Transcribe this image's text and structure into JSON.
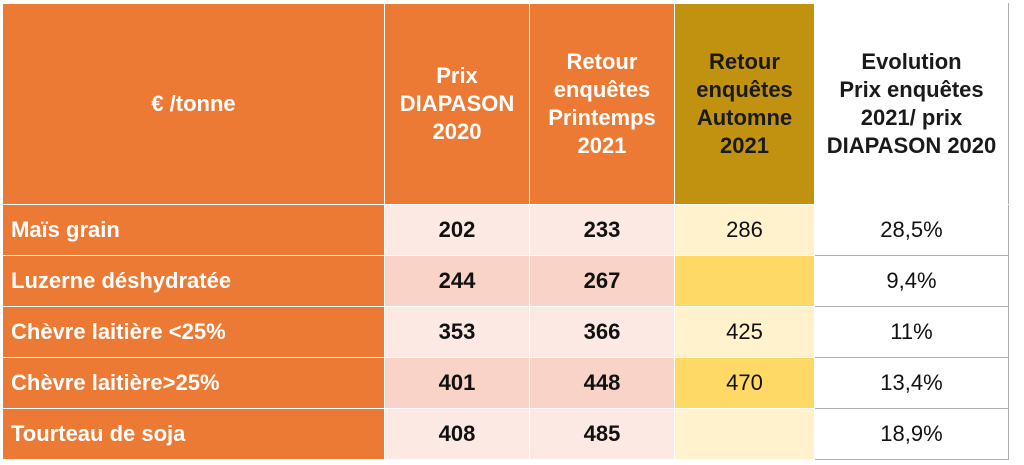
{
  "table": {
    "header": {
      "unit": "€ /tonne",
      "prix_diapason": "Prix\nDIAPASON\n2020",
      "retour_printemps": "Retour\nenquêtes\nPrintemps\n2021",
      "retour_automne": "Retour\nenquêtes\nAutomne\n2021",
      "evolution": "Evolution\nPrix enquêtes\n2021/ prix\nDIAPASON 2020"
    },
    "rows": [
      {
        "label": "Maïs grain",
        "prix_diapason": "202",
        "printemps": "233",
        "automne": "286",
        "evolution": "28,5%"
      },
      {
        "label": "Luzerne déshydratée",
        "prix_diapason": "244",
        "printemps": "267",
        "automne": "",
        "evolution": "9,4%"
      },
      {
        "label": "Chèvre laitière <25%",
        "prix_diapason": "353",
        "printemps": "366",
        "automne": "425",
        "evolution": "11%"
      },
      {
        "label": "Chèvre laitière>25%",
        "prix_diapason": "401",
        "printemps": "448",
        "automne": "470",
        "evolution": "13,4%"
      },
      {
        "label": "Tourteau de soja",
        "prix_diapason": "408",
        "printemps": "485",
        "automne": "",
        "evolution": "18,9%"
      }
    ]
  },
  "colors": {
    "orange": "#ec7a34",
    "gold": "#c09210",
    "pink_light": "#fde9e3",
    "pink_dark": "#f9d3c7",
    "yellow_light": "#fff2cc",
    "yellow_dark": "#ffd966"
  }
}
